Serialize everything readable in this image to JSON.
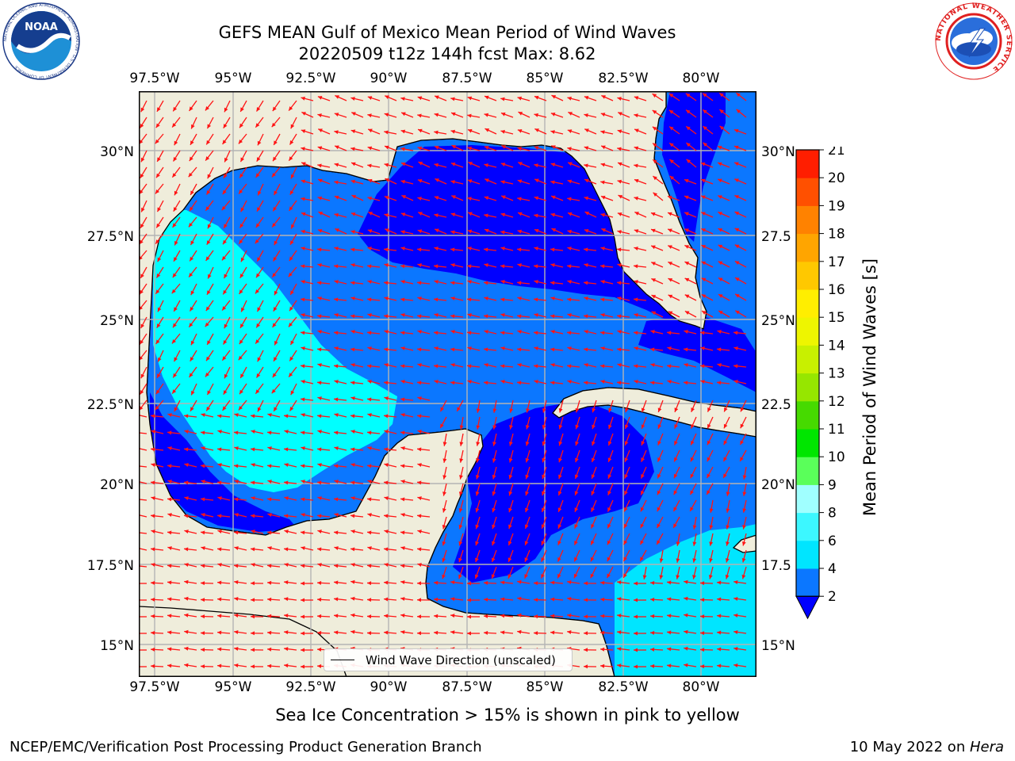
{
  "title": {
    "line1": "GEFS MEAN Gulf of Mexico Mean Period of Wind Waves",
    "line2": "20220509 t12z 144h fcst   Max: 8.62"
  },
  "map": {
    "lon_labels": [
      "97.5°W",
      "95°W",
      "92.5°W",
      "90°W",
      "87.5°W",
      "85°W",
      "82.5°W",
      "80°W"
    ],
    "lat_labels": [
      "30°N",
      "27.5°N",
      "25°N",
      "22.5°N",
      "20°N",
      "17.5°N",
      "15°N"
    ],
    "lat_labels_right": [
      "30°N",
      "27.5",
      "25°N",
      "22.5",
      "20°N",
      "17.5",
      "15°N"
    ],
    "land_color": "#efeddb",
    "legend_label": "Wind Wave Direction (unscaled)"
  },
  "colorbar": {
    "label": "Mean Period of Wind Waves [s]",
    "ticks": [
      "2",
      "4",
      "6",
      "8",
      "9",
      "10",
      "11",
      "12",
      "13",
      "14",
      "15",
      "16",
      "17",
      "18",
      "19",
      "20",
      "21"
    ],
    "colors": [
      "#0b77ff",
      "#00e5ff",
      "#3cf7ff",
      "#a0ffff",
      "#5aff5a",
      "#00e600",
      "#46da00",
      "#96e600",
      "#c8f000",
      "#eef500",
      "#ffee00",
      "#ffc800",
      "#ffa500",
      "#ff8200",
      "#ff5000",
      "#ff1e00"
    ]
  },
  "note": "Sea Ice Concentration > 15% is shown in pink to yellow",
  "footer": {
    "left": "NCEP/EMC/Verification Post Processing Product Generation Branch",
    "right_prefix": "10 May 2022 on ",
    "right_host": "Hera"
  },
  "logos": {
    "noaa_text": "NOAA",
    "noaa_ring": "NATIONAL OCEANIC AND ATMOSPHERIC ADMINISTRATION · U.S. DEPARTMENT OF COMMERCE",
    "nws_ring": "NATIONAL WEATHER SERVICE"
  }
}
